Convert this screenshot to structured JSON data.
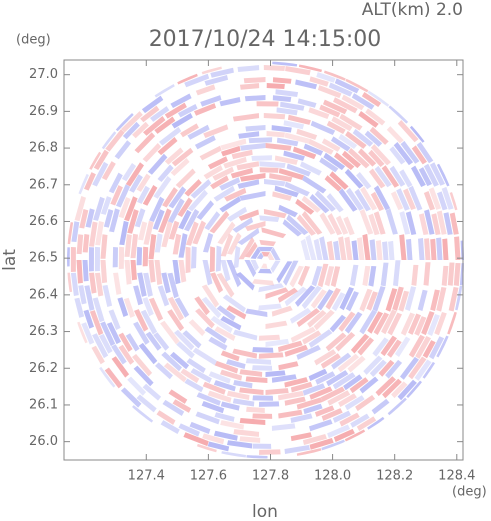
{
  "chart_data": {
    "type": "radar-field",
    "title": "2017/10/24 14:15:00",
    "subtitle": "ALT(km) 2.0",
    "x_label": "lon",
    "y_label": "lat",
    "x_unit": "(deg)",
    "y_unit": "(deg)",
    "xlim": [
      127.135,
      128.42
    ],
    "ylim": [
      25.95,
      27.04
    ],
    "xticks": [
      127.4,
      127.6,
      127.8,
      {
        "value": 128.0,
        "label": "128.0"
      },
      128.2,
      128.4
    ],
    "yticks": [
      {
        "value": 26.0,
        "label": "26.0"
      },
      26.1,
      26.2,
      26.3,
      26.4,
      26.5,
      26.6,
      26.7,
      26.8,
      26.9,
      {
        "value": 27.0,
        "label": "27.0"
      }
    ],
    "colors": [
      "#f5a3a6",
      "#aeb2f5"
    ]
  }
}
